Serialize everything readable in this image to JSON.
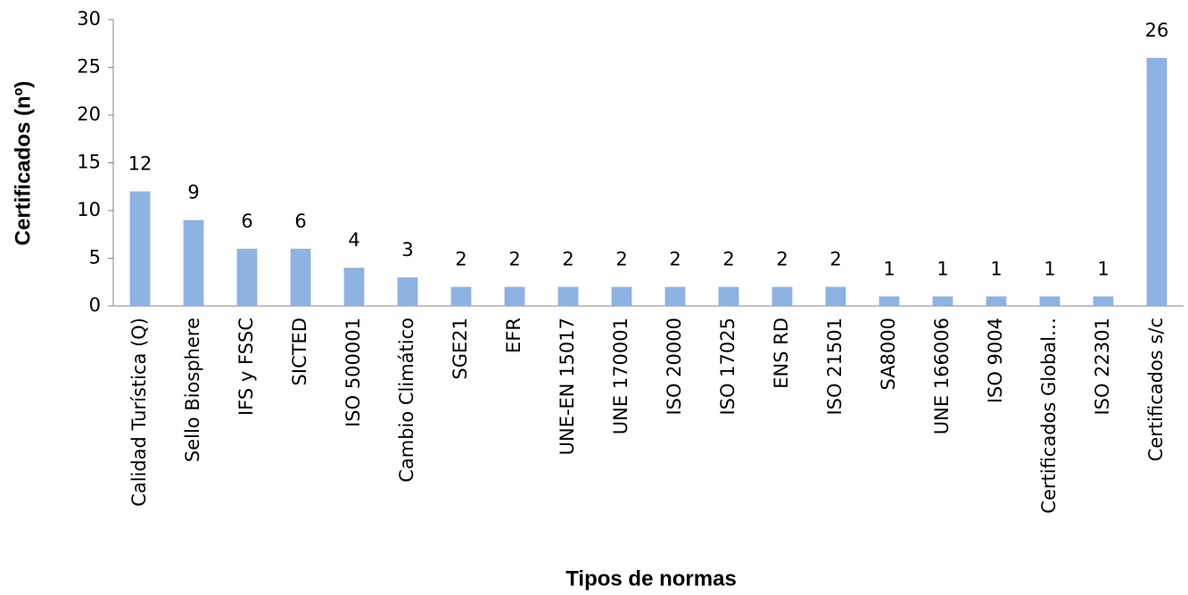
{
  "chart_data": {
    "type": "bar",
    "x_label": "Tipos de normas",
    "y_label": "Certificados (nº)",
    "categories": [
      "Calidad Turística (Q)",
      "Sello Biosphere",
      "IFS y FSSC",
      "SICTED",
      "ISO 500001",
      "Cambio Climático",
      "SGE21",
      "EFR",
      "UNE-EN 15017",
      "UNE 170001",
      "ISO 20000",
      "ISO 17025",
      "ENS RD",
      "ISO 21501",
      "SA8000",
      "UNE 166006",
      "ISO 9004",
      "Certificados Global…",
      "ISO 22301",
      "Certificados s/c"
    ],
    "values": [
      12,
      9,
      6,
      6,
      4,
      3,
      2,
      2,
      2,
      2,
      2,
      2,
      2,
      2,
      1,
      1,
      1,
      1,
      1,
      26
    ],
    "color": "#8db3e2",
    "ylim": [
      0,
      30
    ],
    "yticks": [
      0,
      5,
      10,
      15,
      20,
      25,
      30
    ],
    "grid": false
  }
}
